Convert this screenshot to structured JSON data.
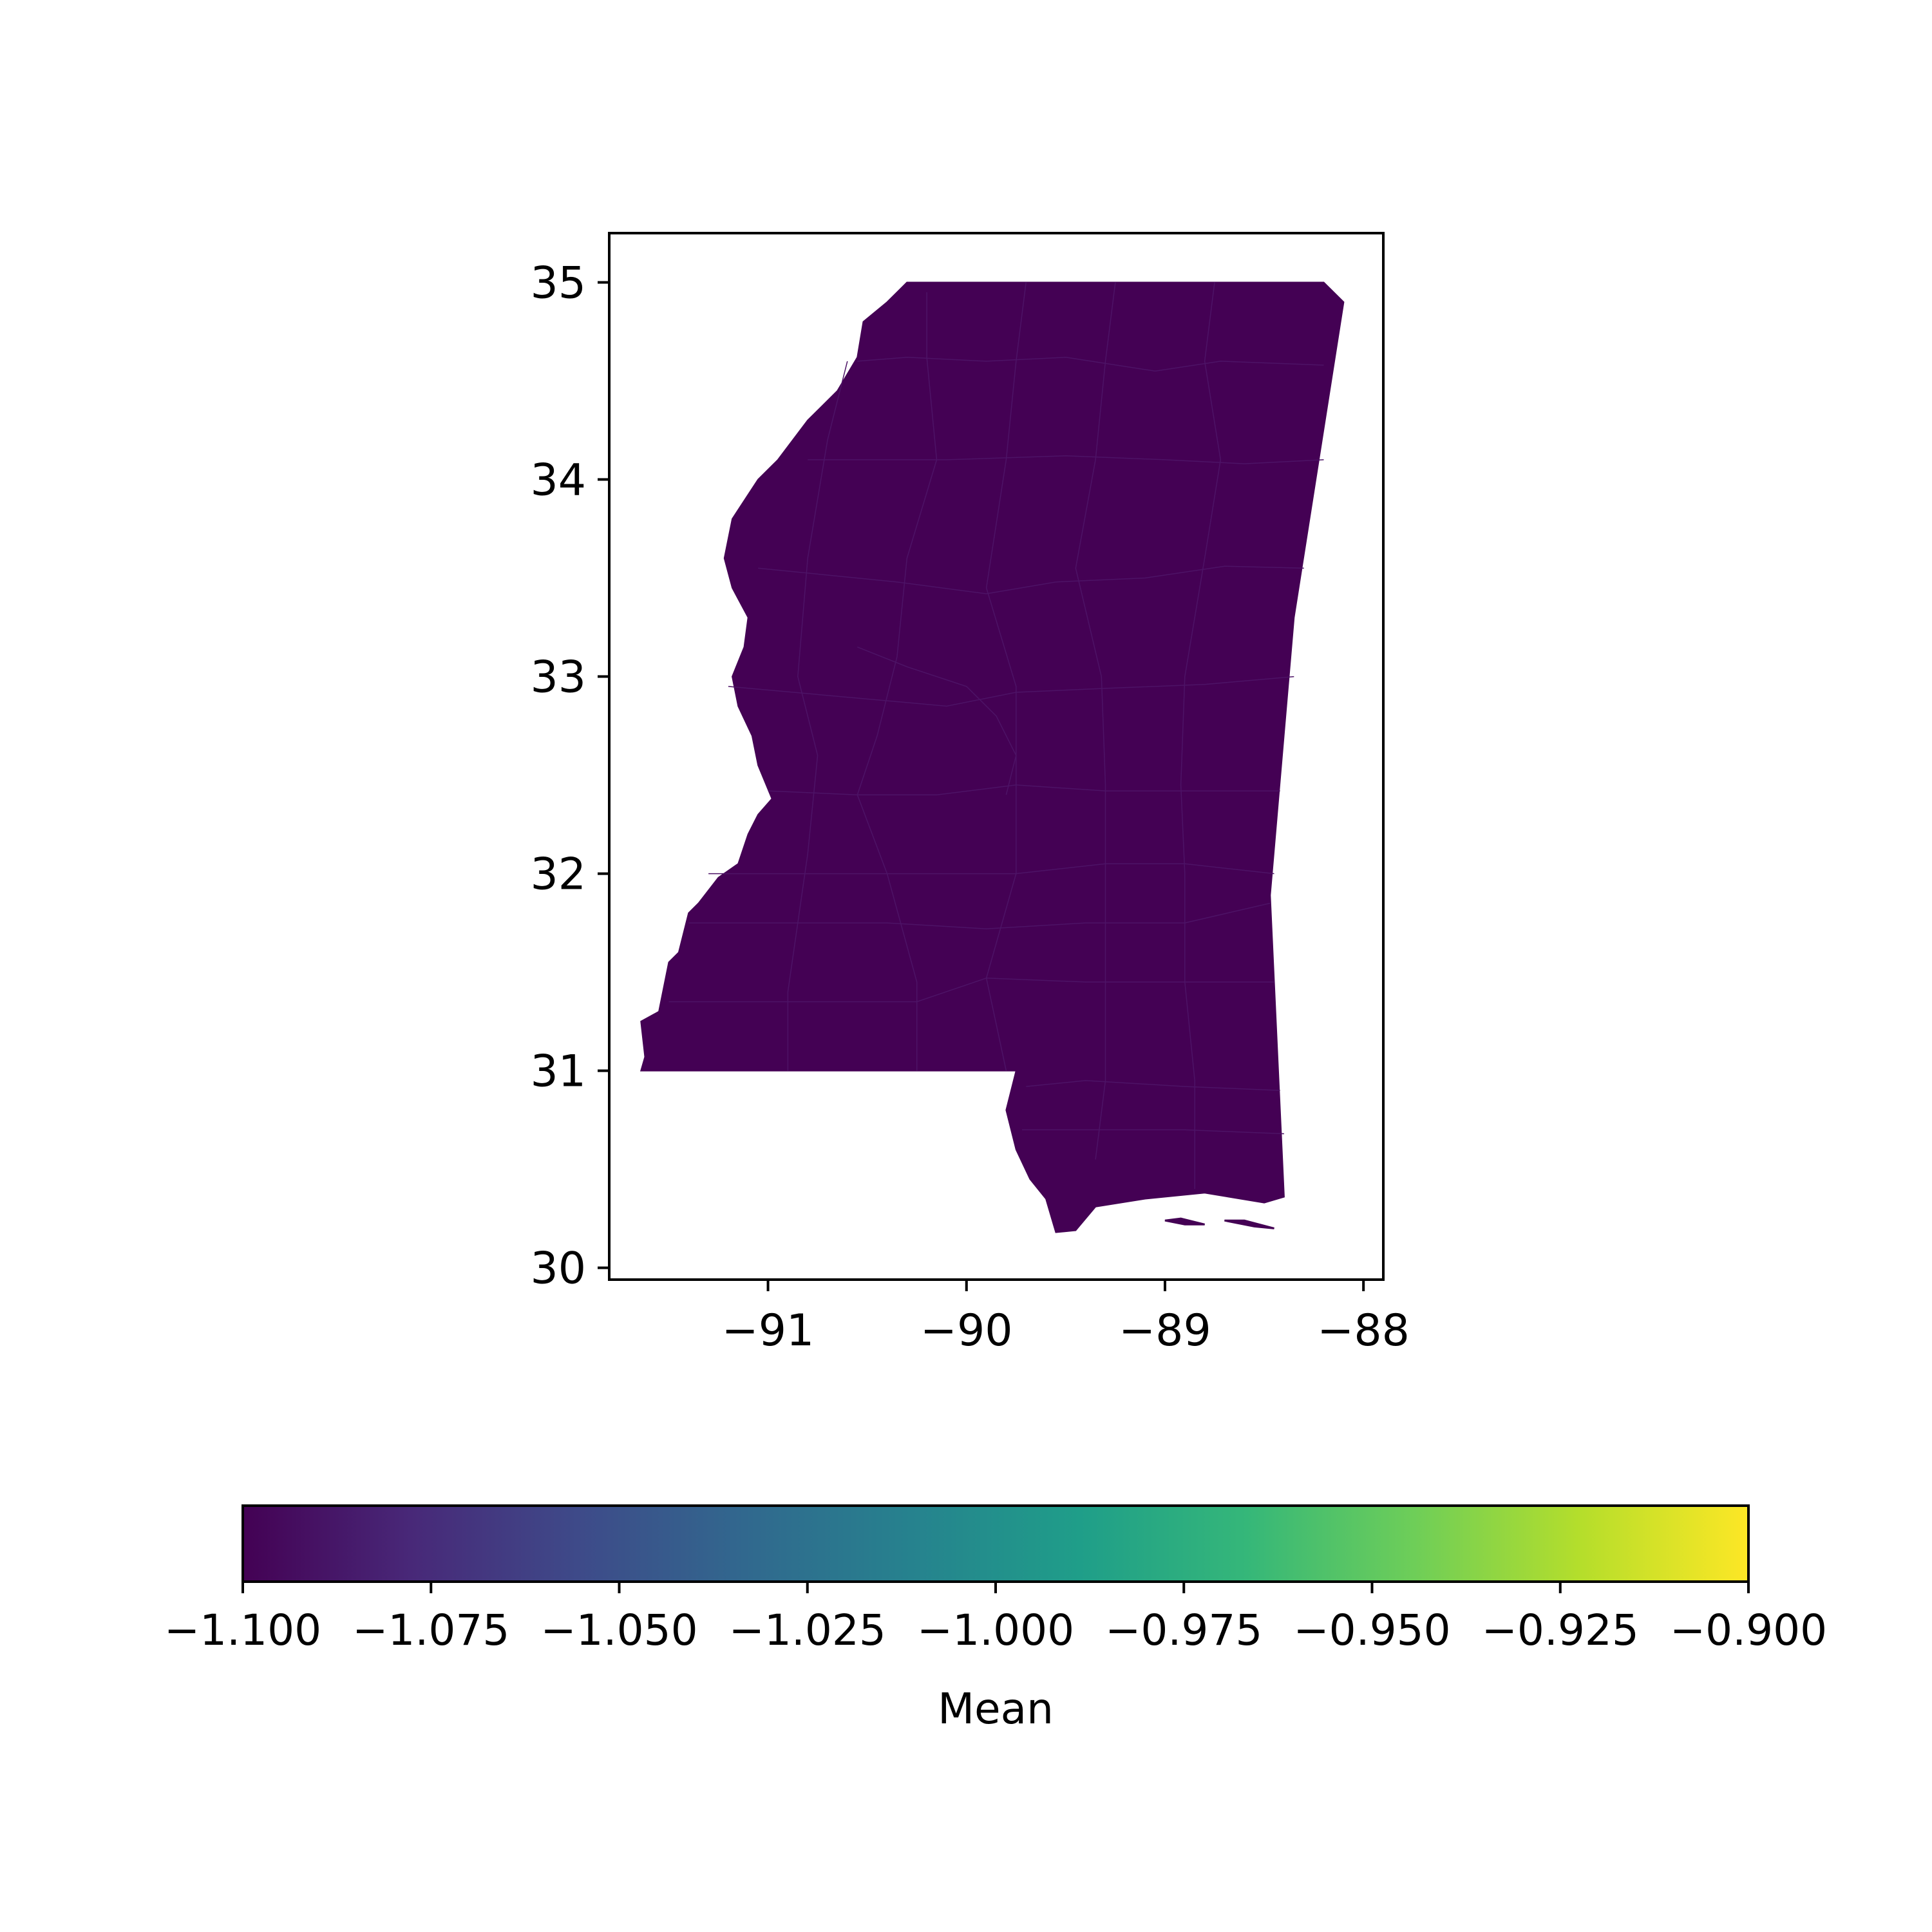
{
  "colors": {
    "fill": "#440154",
    "county_edge": "#4d1366",
    "frame": "#000000",
    "background": "#ffffff"
  },
  "map": {
    "type": "choropleth",
    "region": "Mississippi counties",
    "xlim": [
      -91.8,
      -87.9
    ],
    "ylim": [
      29.94,
      35.25
    ],
    "x_ticks": [
      -91,
      -90,
      -89,
      -88
    ],
    "y_ticks": [
      30,
      31,
      32,
      33,
      34,
      35
    ],
    "x_tick_labels": [
      "−91",
      "−90",
      "−89",
      "−88"
    ],
    "y_tick_labels": [
      "30",
      "31",
      "32",
      "33",
      "34",
      "35"
    ],
    "all_regions_value": -1.1,
    "outline": [
      [
        -90.3,
        35.0
      ],
      [
        -88.2,
        35.0
      ],
      [
        -88.1,
        34.9
      ],
      [
        -88.35,
        33.3
      ],
      [
        -88.47,
        31.89
      ],
      [
        -88.4,
        30.36
      ],
      [
        -88.5,
        30.33
      ],
      [
        -88.8,
        30.38
      ],
      [
        -89.1,
        30.35
      ],
      [
        -89.35,
        30.31
      ],
      [
        -89.45,
        30.19
      ],
      [
        -89.55,
        30.18
      ],
      [
        -89.6,
        30.35
      ],
      [
        -89.68,
        30.45
      ],
      [
        -89.75,
        30.6
      ],
      [
        -89.8,
        30.8
      ],
      [
        -89.75,
        31.0
      ],
      [
        -91.64,
        31.0
      ],
      [
        -91.62,
        31.07
      ],
      [
        -91.64,
        31.25
      ],
      [
        -91.55,
        31.3
      ],
      [
        -91.5,
        31.55
      ],
      [
        -91.45,
        31.6
      ],
      [
        -91.4,
        31.8
      ],
      [
        -91.35,
        31.85
      ],
      [
        -91.25,
        31.98
      ],
      [
        -91.15,
        32.05
      ],
      [
        -91.1,
        32.2
      ],
      [
        -91.05,
        32.3
      ],
      [
        -90.98,
        32.38
      ],
      [
        -91.05,
        32.55
      ],
      [
        -91.08,
        32.7
      ],
      [
        -91.15,
        32.85
      ],
      [
        -91.18,
        33.0
      ],
      [
        -91.12,
        33.15
      ],
      [
        -91.1,
        33.3
      ],
      [
        -91.18,
        33.45
      ],
      [
        -91.22,
        33.6
      ],
      [
        -91.18,
        33.8
      ],
      [
        -91.05,
        34.0
      ],
      [
        -90.95,
        34.1
      ],
      [
        -90.8,
        34.3
      ],
      [
        -90.65,
        34.45
      ],
      [
        -90.55,
        34.62
      ],
      [
        -90.52,
        34.8
      ],
      [
        -90.4,
        34.9
      ],
      [
        -90.3,
        35.0
      ]
    ],
    "gulf_islands": [
      [
        [
          -89.0,
          30.24
        ],
        [
          -88.9,
          30.22
        ],
        [
          -88.8,
          30.22
        ],
        [
          -88.92,
          30.25
        ]
      ],
      [
        [
          -88.7,
          30.24
        ],
        [
          -88.55,
          30.21
        ],
        [
          -88.45,
          30.2
        ],
        [
          -88.6,
          30.24
        ]
      ]
    ],
    "county_lines": [
      [
        [
          -88.2,
          34.58
        ],
        [
          -88.72,
          34.6
        ],
        [
          -89.05,
          34.55
        ],
        [
          -89.5,
          34.62
        ],
        [
          -89.9,
          34.6
        ],
        [
          -90.3,
          34.62
        ],
        [
          -90.55,
          34.6
        ]
      ],
      [
        [
          -88.2,
          34.1
        ],
        [
          -88.6,
          34.08
        ],
        [
          -89.0,
          34.1
        ],
        [
          -89.5,
          34.12
        ],
        [
          -90.1,
          34.1
        ],
        [
          -90.8,
          34.1
        ]
      ],
      [
        [
          -88.3,
          33.55
        ],
        [
          -88.7,
          33.56
        ],
        [
          -89.1,
          33.5
        ],
        [
          -89.55,
          33.48
        ],
        [
          -89.9,
          33.42
        ],
        [
          -90.35,
          33.48
        ],
        [
          -91.05,
          33.55
        ]
      ],
      [
        [
          -88.35,
          33.0
        ],
        [
          -88.8,
          32.96
        ],
        [
          -89.3,
          32.94
        ],
        [
          -89.75,
          32.92
        ],
        [
          -90.1,
          32.85
        ],
        [
          -90.65,
          32.9
        ],
        [
          -91.2,
          32.95
        ]
      ],
      [
        [
          -88.42,
          32.42
        ],
        [
          -88.9,
          32.42
        ],
        [
          -89.3,
          32.42
        ],
        [
          -89.75,
          32.45
        ],
        [
          -90.15,
          32.4
        ],
        [
          -90.55,
          32.4
        ],
        [
          -91.0,
          32.42
        ]
      ],
      [
        [
          -88.45,
          32.0
        ],
        [
          -88.9,
          32.05
        ],
        [
          -89.3,
          32.05
        ],
        [
          -89.75,
          32.0
        ],
        [
          -90.25,
          32.0
        ],
        [
          -90.75,
          32.0
        ],
        [
          -91.3,
          32.0
        ]
      ],
      [
        [
          -88.47,
          31.85
        ],
        [
          -88.9,
          31.75
        ],
        [
          -89.4,
          31.75
        ],
        [
          -89.9,
          31.72
        ],
        [
          -90.4,
          31.75
        ],
        [
          -90.8,
          31.75
        ],
        [
          -91.4,
          31.75
        ]
      ],
      [
        [
          -88.45,
          31.45
        ],
        [
          -88.9,
          31.45
        ],
        [
          -89.4,
          31.45
        ],
        [
          -89.9,
          31.47
        ],
        [
          -90.25,
          31.35
        ],
        [
          -90.9,
          31.35
        ],
        [
          -91.5,
          31.35
        ]
      ],
      [
        [
          -88.42,
          30.9
        ],
        [
          -88.9,
          30.92
        ],
        [
          -89.4,
          30.95
        ],
        [
          -89.7,
          30.92
        ]
      ],
      [
        [
          -88.4,
          30.68
        ],
        [
          -88.9,
          30.7
        ],
        [
          -89.4,
          30.7
        ],
        [
          -89.72,
          30.7
        ]
      ],
      [
        [
          -88.75,
          35.0
        ],
        [
          -88.8,
          34.6
        ],
        [
          -88.72,
          34.1
        ],
        [
          -88.8,
          33.6
        ],
        [
          -88.9,
          33.0
        ],
        [
          -88.92,
          32.45
        ],
        [
          -88.9,
          32.0
        ],
        [
          -88.9,
          31.45
        ],
        [
          -88.85,
          30.95
        ],
        [
          -88.85,
          30.4
        ]
      ],
      [
        [
          -89.25,
          35.0
        ],
        [
          -89.3,
          34.6
        ],
        [
          -89.35,
          34.1
        ],
        [
          -89.45,
          33.55
        ],
        [
          -89.32,
          33.0
        ],
        [
          -89.3,
          32.45
        ],
        [
          -89.3,
          32.0
        ],
        [
          -89.3,
          31.45
        ],
        [
          -89.3,
          30.95
        ],
        [
          -89.35,
          30.55
        ]
      ],
      [
        [
          -89.7,
          35.0
        ],
        [
          -89.75,
          34.6
        ],
        [
          -89.8,
          34.1
        ],
        [
          -89.9,
          33.45
        ],
        [
          -89.75,
          32.95
        ],
        [
          -89.75,
          32.45
        ],
        [
          -89.75,
          32.0
        ],
        [
          -89.9,
          31.47
        ],
        [
          -89.8,
          31.0
        ]
      ],
      [
        [
          -90.2,
          34.95
        ],
        [
          -90.2,
          34.62
        ],
        [
          -90.15,
          34.1
        ],
        [
          -90.3,
          33.6
        ],
        [
          -90.35,
          33.1
        ],
        [
          -90.45,
          32.7
        ],
        [
          -90.55,
          32.4
        ],
        [
          -90.4,
          32.0
        ],
        [
          -90.25,
          31.45
        ],
        [
          -90.25,
          31.0
        ]
      ],
      [
        [
          -90.6,
          34.6
        ],
        [
          -90.7,
          34.2
        ],
        [
          -90.8,
          33.6
        ],
        [
          -90.85,
          33.0
        ],
        [
          -90.75,
          32.6
        ],
        [
          -90.8,
          32.1
        ],
        [
          -90.9,
          31.4
        ],
        [
          -90.9,
          31.0
        ]
      ],
      [
        [
          -90.55,
          33.15
        ],
        [
          -90.3,
          33.05
        ],
        [
          -90.0,
          32.95
        ],
        [
          -89.85,
          32.8
        ],
        [
          -89.75,
          32.6
        ],
        [
          -89.8,
          32.4
        ]
      ]
    ]
  },
  "colorbar": {
    "label": "Mean",
    "min": -1.1,
    "max": -0.9,
    "tick_values": [
      -1.1,
      -1.075,
      -1.05,
      -1.025,
      -1.0,
      -0.975,
      -0.95,
      -0.925,
      -0.9
    ],
    "tick_labels": [
      "−1.100",
      "−1.075",
      "−1.050",
      "−1.025",
      "−1.000",
      "−0.975",
      "−0.950",
      "−0.925",
      "−0.900"
    ],
    "colormap": "viridis",
    "gradient_stops": [
      "#440154",
      "#482878",
      "#3e4a89",
      "#31688e",
      "#26828e",
      "#1f9e89",
      "#35b779",
      "#6ece58",
      "#b5de2b",
      "#fde725"
    ]
  }
}
